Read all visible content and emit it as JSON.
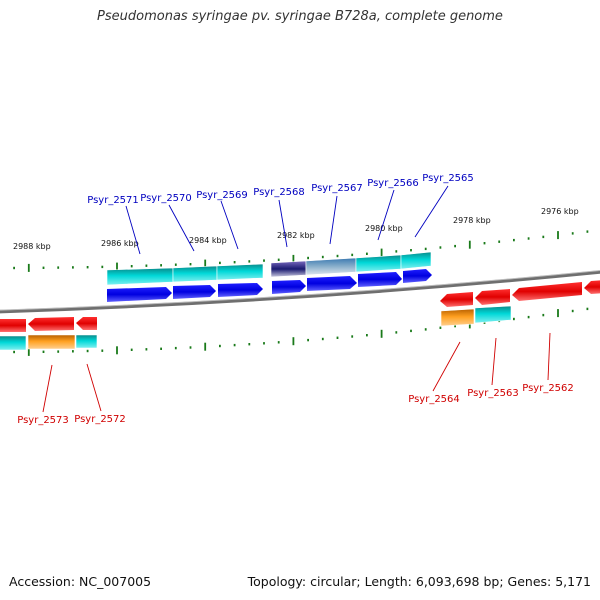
{
  "title": "Pseudomonas syringae pv. syringae B728a, complete genome",
  "footer": {
    "accession": "Accession: NC_007005",
    "info": "Topology: circular; Length: 6,093,698 bp; Genes: 5,171"
  },
  "colors": {
    "backbone": "#7a7a7a",
    "tick": "#1a7a1a",
    "top_label": "#0000c0",
    "bottom_label": "#d00000",
    "forward_gene": "#0000ee",
    "reverse_gene": "#ee0000",
    "cds_cyan": "#00bcbc",
    "cds_orange": "#ff9900",
    "cds_purple": "#3a2a8a",
    "cds_steel": "#5a8ab0"
  },
  "ruler": {
    "top": [
      "2988 kbp",
      "2986 kbp",
      "2984 kbp",
      "2982 kbp",
      "2980 kbp",
      "2978 kbp",
      "2976 kbp"
    ]
  },
  "genes_top": [
    {
      "label": "Psyr_2571"
    },
    {
      "label": "Psyr_2570"
    },
    {
      "label": "Psyr_2569"
    },
    {
      "label": "Psyr_2568"
    },
    {
      "label": "Psyr_2567"
    },
    {
      "label": "Psyr_2566"
    },
    {
      "label": "Psyr_2565"
    }
  ],
  "genes_bottom": [
    {
      "label": "Psyr_2573"
    },
    {
      "label": "Psyr_2572"
    },
    {
      "label": "Psyr_2564"
    },
    {
      "label": "Psyr_2563"
    },
    {
      "label": "Psyr_2562"
    }
  ]
}
